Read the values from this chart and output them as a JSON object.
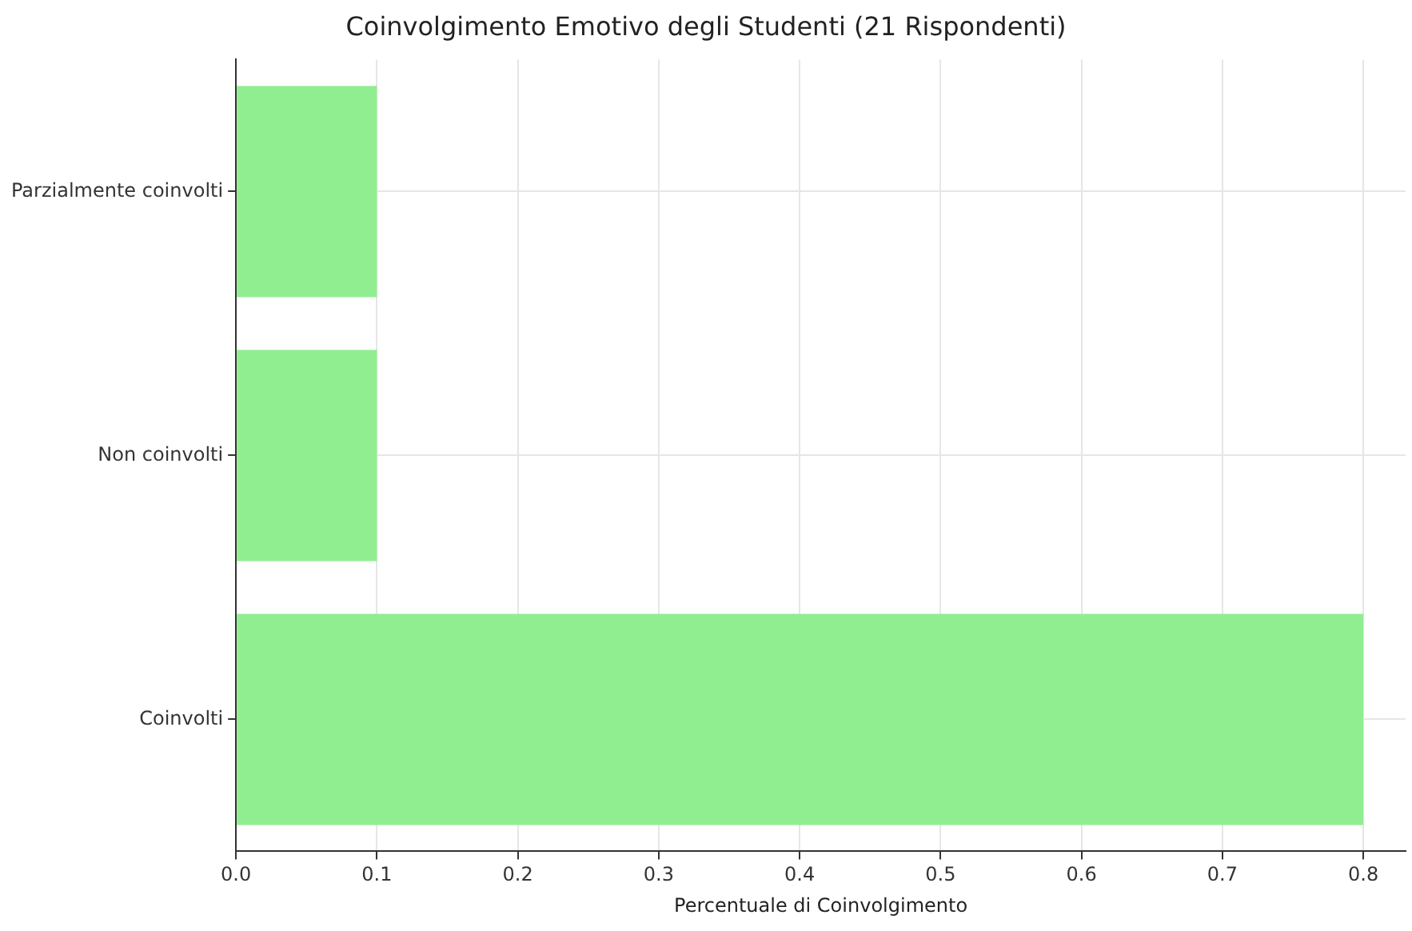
{
  "chart_data": {
    "type": "bar",
    "orientation": "horizontal",
    "title": "Coinvolgimento Emotivo degli Studenti (21 Rispondenti)",
    "xlabel": "Percentuale di Coinvolgimento",
    "categories": [
      "Parzialmente coinvolti",
      "Non coinvolti",
      "Coinvolti"
    ],
    "values": [
      0.1,
      0.1,
      0.8
    ],
    "color": "#90ee90",
    "xlim": [
      0,
      0.83
    ],
    "xticks": [
      {
        "value": 0,
        "label": "0.0"
      },
      0.1,
      0.2,
      0.3,
      0.4,
      0.5,
      0.6,
      0.7,
      0.8
    ],
    "grid": true
  }
}
